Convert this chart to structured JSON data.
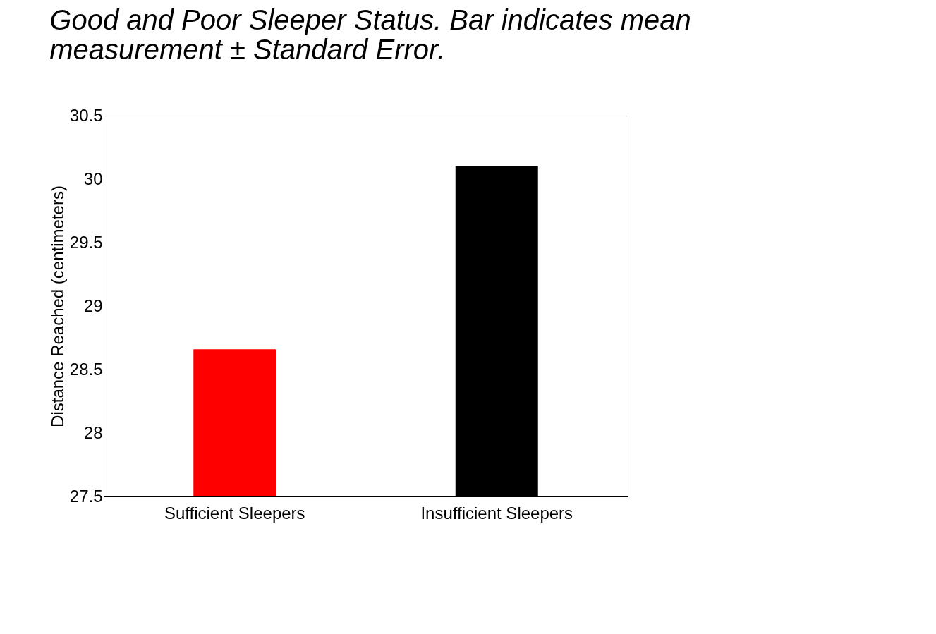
{
  "chart_data": {
    "type": "bar",
    "title": [
      "Good and Poor Sleeper Status. Bar indicates mean",
      "measurement ± Standard Error."
    ],
    "ylabel": "Distance Reached (centimeters)",
    "categories": [
      "Sufficient Sleepers",
      "Insufficient Sleepers"
    ],
    "values": [
      28.66,
      30.1
    ],
    "colors": [
      "#ff0000",
      "#000000"
    ],
    "ylim": [
      27.5,
      30.5
    ],
    "yticks": [
      27.5,
      28,
      28.5,
      29,
      29.5,
      30,
      30.5
    ],
    "grid": false,
    "legend": false
  }
}
